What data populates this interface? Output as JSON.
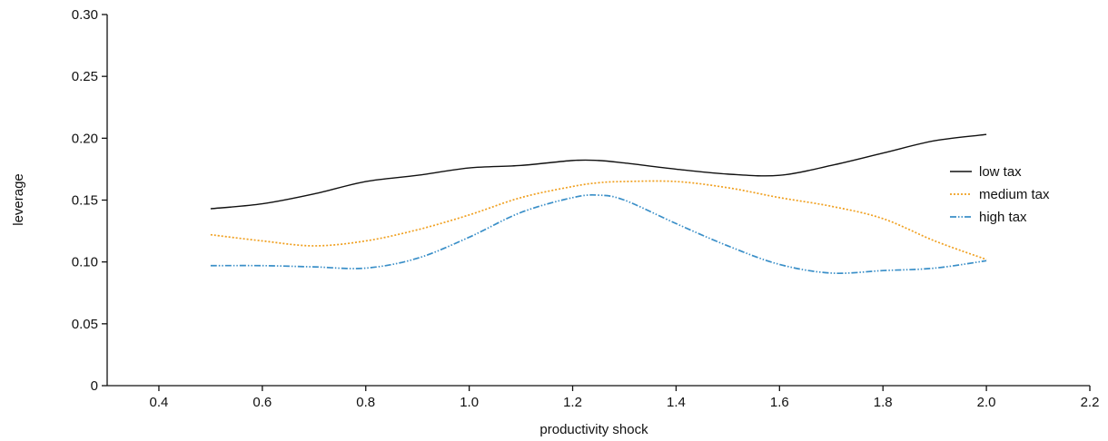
{
  "chart_data": {
    "type": "line",
    "title": "",
    "xlabel": "productivity shock",
    "ylabel": "leverage",
    "xlim": [
      0.3,
      2.2
    ],
    "ylim": [
      0,
      0.3
    ],
    "x_ticks": [
      0.4,
      0.6,
      0.8,
      1.0,
      1.2,
      1.4,
      1.6,
      1.8,
      2.0,
      2.2
    ],
    "x_tick_labels": [
      "0.4",
      "0.6",
      "0.8",
      "1.0",
      "1.2",
      "1.4",
      "1.6",
      "1.8",
      "2.0",
      "2.2"
    ],
    "y_ticks": [
      0,
      0.05,
      0.1,
      0.15,
      0.2,
      0.25,
      0.3
    ],
    "y_tick_labels": [
      "0",
      "0.05",
      "0.10",
      "0.15",
      "0.20",
      "0.25",
      "0.30"
    ],
    "grid": false,
    "legend_position": "right",
    "x": [
      0.5,
      0.6,
      0.7,
      0.8,
      0.9,
      1.0,
      1.1,
      1.2,
      1.25,
      1.3,
      1.4,
      1.5,
      1.6,
      1.7,
      1.8,
      1.9,
      2.0
    ],
    "series": [
      {
        "name": "low tax",
        "color": "#111111",
        "style": "solid",
        "values": [
          0.143,
          0.147,
          0.155,
          0.165,
          0.17,
          0.176,
          0.178,
          0.182,
          0.182,
          0.18,
          0.175,
          0.171,
          0.17,
          0.178,
          0.188,
          0.198,
          0.203
        ]
      },
      {
        "name": "medium tax",
        "color": "#f0a020",
        "style": "dotted",
        "values": [
          0.122,
          0.117,
          0.113,
          0.117,
          0.126,
          0.138,
          0.152,
          0.161,
          0.164,
          0.165,
          0.165,
          0.16,
          0.152,
          0.145,
          0.135,
          0.117,
          0.102
        ]
      },
      {
        "name": "high tax",
        "color": "#3a8fc8",
        "style": "dashdot",
        "values": [
          0.097,
          0.097,
          0.096,
          0.095,
          0.103,
          0.12,
          0.14,
          0.152,
          0.154,
          0.15,
          0.131,
          0.113,
          0.098,
          0.091,
          0.093,
          0.095,
          0.101
        ]
      }
    ]
  }
}
